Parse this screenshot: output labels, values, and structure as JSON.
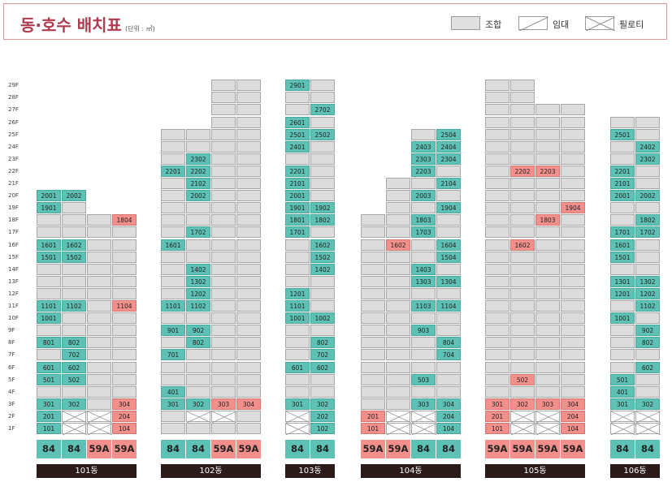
{
  "title": "동·호수 배치표",
  "unit": "(단위 : ㎡)",
  "legend": [
    {
      "label": "조합",
      "kind": "association"
    },
    {
      "label": "임대",
      "kind": "rental"
    },
    {
      "label": "필로티",
      "kind": "piloti"
    }
  ],
  "colors": {
    "association": "#dcdcdc",
    "teal": "#5dc2b5",
    "rental": "#f3908c",
    "title": "#b03a4e"
  },
  "floors": [
    "29F",
    "28F",
    "27F",
    "26F",
    "25F",
    "24F",
    "23F",
    "22F",
    "21F",
    "20F",
    "19F",
    "18F",
    "17F",
    "16F",
    "15F",
    "14F",
    "13F",
    "12F",
    "11F",
    "10F",
    "9F",
    "8F",
    "7F",
    "6F",
    "5F",
    "4F",
    "3F",
    "2F",
    "1F"
  ],
  "buildings": [
    {
      "name": "101동",
      "types": [
        {
          "label": "84",
          "kind": "t"
        },
        {
          "label": "84",
          "kind": "t"
        },
        {
          "label": "59A",
          "kind": "r"
        },
        {
          "label": "59A",
          "kind": "r"
        }
      ],
      "columns": [
        {
          "top": 20,
          "cells": {
            "20": [
              "2001",
              "t"
            ],
            "19": [
              "1901",
              "t"
            ],
            "16": [
              "1601",
              "t"
            ],
            "15": [
              "1501",
              "t"
            ],
            "11": [
              "1101",
              "t"
            ],
            "10": [
              "1001",
              "t"
            ],
            "8": [
              "801",
              "t"
            ],
            "6": [
              "601",
              "t"
            ],
            "5": [
              "501",
              "t"
            ],
            "3": [
              "301",
              "t"
            ],
            "2": [
              "201",
              "t"
            ],
            "1": [
              "101",
              "t"
            ]
          }
        },
        {
          "top": 20,
          "cells": {
            "20": [
              "2002",
              "t"
            ],
            "16": [
              "1602",
              "t"
            ],
            "15": [
              "1502",
              "t"
            ],
            "11": [
              "1102",
              "t"
            ],
            "8": [
              "802",
              "t"
            ],
            "7": [
              "702",
              "t"
            ],
            "6": [
              "602",
              "t"
            ],
            "5": [
              "502",
              "t"
            ],
            "3": [
              "302",
              "t"
            ],
            "2": [
              "",
              "x"
            ],
            "1": [
              "",
              "x"
            ]
          }
        },
        {
          "top": 18,
          "cells": {
            "2": [
              "",
              "x"
            ],
            "1": [
              "",
              "x"
            ]
          }
        },
        {
          "top": 18,
          "cells": {
            "18": [
              "1804",
              "r"
            ],
            "11": [
              "1104",
              "r"
            ],
            "3": [
              "304",
              "r"
            ],
            "2": [
              "204",
              "r"
            ],
            "1": [
              "104",
              "r"
            ]
          }
        }
      ]
    },
    {
      "name": "102동",
      "types": [
        {
          "label": "84",
          "kind": "t"
        },
        {
          "label": "84",
          "kind": "t"
        },
        {
          "label": "59A",
          "kind": "r"
        },
        {
          "label": "59A",
          "kind": "r"
        }
      ],
      "columns": [
        {
          "top": 25,
          "cells": {
            "22": [
              "2201",
              "t"
            ],
            "16": [
              "1601",
              "t"
            ],
            "11": [
              "1101",
              "t"
            ],
            "9": [
              "901",
              "t"
            ],
            "7": [
              "701",
              "t"
            ],
            "4": [
              "401",
              "t"
            ],
            "3": [
              "301",
              "t"
            ]
          }
        },
        {
          "top": 25,
          "cells": {
            "23": [
              "2302",
              "t"
            ],
            "22": [
              "2202",
              "t"
            ],
            "21": [
              "2102",
              "t"
            ],
            "20": [
              "2002",
              "t"
            ],
            "17": [
              "1702",
              "t"
            ],
            "14": [
              "1402",
              "t"
            ],
            "13": [
              "1302",
              "t"
            ],
            "12": [
              "1202",
              "t"
            ],
            "11": [
              "1102",
              "t"
            ],
            "9": [
              "902",
              "t"
            ],
            "8": [
              "802",
              "t"
            ],
            "3": [
              "302",
              "t"
            ],
            "2": [
              "",
              "x"
            ]
          }
        },
        {
          "top": 29,
          "cells": {
            "3": [
              "303",
              "r"
            ],
            "2": [
              "",
              "x"
            ]
          }
        },
        {
          "top": 29,
          "cells": {
            "3": [
              "304",
              "r"
            ]
          }
        }
      ]
    },
    {
      "name": "103동",
      "types": [
        {
          "label": "84",
          "kind": "t"
        },
        {
          "label": "84",
          "kind": "t"
        }
      ],
      "columns": [
        {
          "top": 29,
          "cells": {
            "29": [
              "2901",
              "t"
            ],
            "26": [
              "2601",
              "t"
            ],
            "25": [
              "2501",
              "t"
            ],
            "24": [
              "2401",
              "t"
            ],
            "22": [
              "2201",
              "t"
            ],
            "21": [
              "2101",
              "t"
            ],
            "20": [
              "2001",
              "t"
            ],
            "19": [
              "1901",
              "t"
            ],
            "18": [
              "1801",
              "t"
            ],
            "17": [
              "1701",
              "t"
            ],
            "12": [
              "1201",
              "t"
            ],
            "11": [
              "1101",
              "t"
            ],
            "10": [
              "1001",
              "t"
            ],
            "6": [
              "601",
              "t"
            ],
            "3": [
              "301",
              "t"
            ],
            "2": [
              "",
              "x"
            ],
            "1": [
              "",
              "x"
            ]
          }
        },
        {
          "top": 29,
          "cells": {
            "27": [
              "2702",
              "t"
            ],
            "25": [
              "2502",
              "t"
            ],
            "19": [
              "1902",
              "t"
            ],
            "18": [
              "1802",
              "t"
            ],
            "16": [
              "1602",
              "t"
            ],
            "15": [
              "1502",
              "t"
            ],
            "14": [
              "1402",
              "t"
            ],
            "10": [
              "1002",
              "t"
            ],
            "8": [
              "802",
              "t"
            ],
            "7": [
              "702",
              "t"
            ],
            "6": [
              "602",
              "t"
            ],
            "3": [
              "302",
              "t"
            ],
            "2": [
              "202",
              "t"
            ],
            "1": [
              "102",
              "t"
            ]
          }
        }
      ]
    },
    {
      "name": "104동",
      "types": [
        {
          "label": "59A",
          "kind": "r"
        },
        {
          "label": "59A",
          "kind": "r"
        },
        {
          "label": "84",
          "kind": "t"
        },
        {
          "label": "84",
          "kind": "t"
        }
      ],
      "columns": [
        {
          "top": 18,
          "cells": {
            "2": [
              "201",
              "r"
            ],
            "1": [
              "101",
              "r"
            ]
          }
        },
        {
          "top": 21,
          "cells": {
            "16": [
              "1602",
              "r"
            ],
            "2": [
              "",
              "x"
            ],
            "1": [
              "",
              "x"
            ]
          }
        },
        {
          "top": 25,
          "cells": {
            "24": [
              "2403",
              "t"
            ],
            "23": [
              "2303",
              "t"
            ],
            "22": [
              "2203",
              "t"
            ],
            "20": [
              "2003",
              "t"
            ],
            "18": [
              "1803",
              "t"
            ],
            "17": [
              "1703",
              "t"
            ],
            "14": [
              "1403",
              "t"
            ],
            "13": [
              "1303",
              "t"
            ],
            "11": [
              "1103",
              "t"
            ],
            "9": [
              "903",
              "t"
            ],
            "5": [
              "503",
              "t"
            ],
            "3": [
              "303",
              "t"
            ],
            "2": [
              "",
              "x"
            ],
            "1": [
              "",
              "x"
            ]
          }
        },
        {
          "top": 25,
          "cells": {
            "25": [
              "2504",
              "t"
            ],
            "24": [
              "2404",
              "t"
            ],
            "23": [
              "2304",
              "t"
            ],
            "21": [
              "2104",
              "t"
            ],
            "19": [
              "1904",
              "t"
            ],
            "16": [
              "1604",
              "t"
            ],
            "15": [
              "1504",
              "t"
            ],
            "13": [
              "1304",
              "t"
            ],
            "11": [
              "1104",
              "t"
            ],
            "8": [
              "804",
              "t"
            ],
            "7": [
              "704",
              "t"
            ],
            "3": [
              "304",
              "t"
            ],
            "2": [
              "204",
              "t"
            ],
            "1": [
              "104",
              "t"
            ]
          }
        }
      ]
    },
    {
      "name": "105동",
      "types": [
        {
          "label": "59A",
          "kind": "r"
        },
        {
          "label": "59A",
          "kind": "r"
        },
        {
          "label": "59A",
          "kind": "r"
        },
        {
          "label": "59A",
          "kind": "r"
        }
      ],
      "columns": [
        {
          "top": 29,
          "cells": {
            "3": [
              "301",
              "r"
            ],
            "2": [
              "201",
              "r"
            ],
            "1": [
              "101",
              "r"
            ]
          }
        },
        {
          "top": 29,
          "cells": {
            "22": [
              "2202",
              "r"
            ],
            "16": [
              "1602",
              "r"
            ],
            "5": [
              "502",
              "r"
            ],
            "3": [
              "302",
              "r"
            ],
            "2": [
              "",
              "x"
            ],
            "1": [
              "",
              "x"
            ]
          }
        },
        {
          "top": 27,
          "cells": {
            "22": [
              "2203",
              "r"
            ],
            "18": [
              "1803",
              "r"
            ],
            "3": [
              "303",
              "r"
            ],
            "2": [
              "",
              "x"
            ],
            "1": [
              "",
              "x"
            ]
          }
        },
        {
          "top": 27,
          "cells": {
            "19": [
              "1904",
              "r"
            ],
            "3": [
              "304",
              "r"
            ],
            "2": [
              "204",
              "r"
            ],
            "1": [
              "104",
              "r"
            ]
          }
        }
      ]
    },
    {
      "name": "106동",
      "types": [
        {
          "label": "84",
          "kind": "t"
        },
        {
          "label": "84",
          "kind": "t"
        }
      ],
      "columns": [
        {
          "top": 26,
          "cells": {
            "25": [
              "2501",
              "t"
            ],
            "22": [
              "2201",
              "t"
            ],
            "21": [
              "2101",
              "t"
            ],
            "20": [
              "2001",
              "t"
            ],
            "17": [
              "1701",
              "t"
            ],
            "16": [
              "1601",
              "t"
            ],
            "15": [
              "1501",
              "t"
            ],
            "13": [
              "1301",
              "t"
            ],
            "12": [
              "1201",
              "t"
            ],
            "10": [
              "1001",
              "t"
            ],
            "5": [
              "501",
              "t"
            ],
            "4": [
              "401",
              "t"
            ],
            "3": [
              "301",
              "t"
            ],
            "2": [
              "",
              "x"
            ],
            "1": [
              "",
              "x"
            ]
          }
        },
        {
          "top": 26,
          "cells": {
            "24": [
              "2402",
              "t"
            ],
            "23": [
              "2302",
              "t"
            ],
            "20": [
              "2002",
              "t"
            ],
            "18": [
              "1802",
              "t"
            ],
            "17": [
              "1702",
              "t"
            ],
            "13": [
              "1302",
              "t"
            ],
            "12": [
              "1202",
              "t"
            ],
            "11": [
              "1102",
              "t"
            ],
            "9": [
              "902",
              "t"
            ],
            "8": [
              "802",
              "t"
            ],
            "6": [
              "602",
              "t"
            ],
            "3": [
              "302",
              "t"
            ],
            "2": [
              "",
              "x"
            ],
            "1": [
              "",
              "x"
            ]
          }
        }
      ]
    }
  ]
}
